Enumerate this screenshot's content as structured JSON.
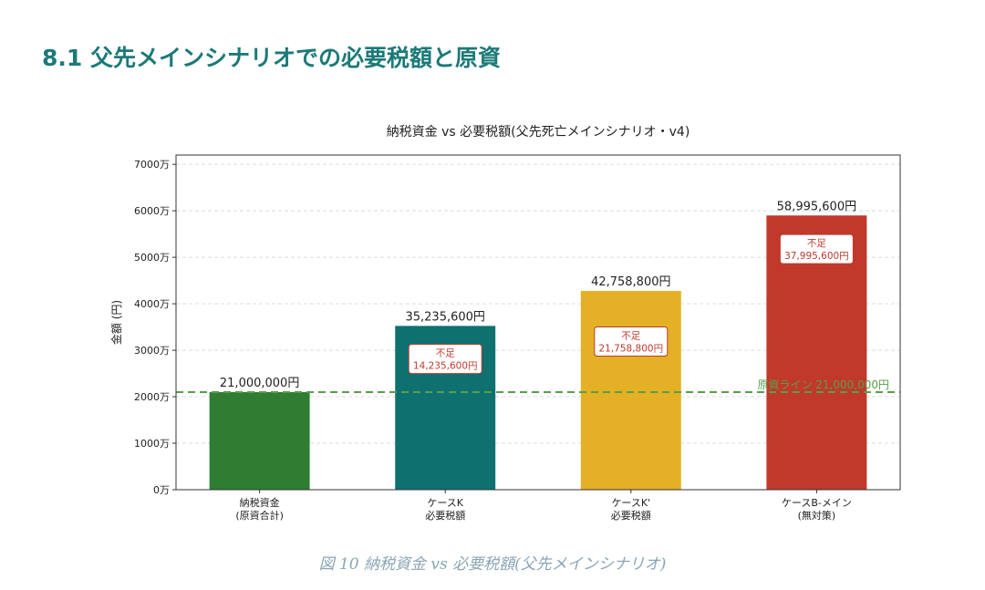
{
  "heading": "8.1  父先メインシナリオでの必要税額と原資",
  "caption": "図 10  納税資金 vs 必要税額(父先メインシナリオ)",
  "chart_data": {
    "type": "bar",
    "title": "納税資金 vs 必要税額(父先死亡メインシナリオ・v4)",
    "xlabel": "",
    "ylabel": "金額 (円)",
    "ylim": [
      0,
      72000000
    ],
    "yticks": [
      0,
      10000000,
      20000000,
      30000000,
      40000000,
      50000000,
      60000000,
      70000000
    ],
    "ytick_labels": [
      "0万",
      "1000万",
      "2000万",
      "3000万",
      "4000万",
      "5000万",
      "6000万",
      "7000万"
    ],
    "grid": "y-dashed",
    "categories": [
      [
        "納税資金",
        "(原資合計)"
      ],
      [
        "ケースK",
        "必要税額"
      ],
      [
        "ケースK'",
        "必要税額"
      ],
      [
        "ケースB-メイン",
        "(無対策)"
      ]
    ],
    "values": [
      21000000,
      35235600,
      42758800,
      58995600
    ],
    "value_labels": [
      "21,000,000円",
      "35,235,600円",
      "42,758,800円",
      "58,995,600円"
    ],
    "colors": [
      "#2e7d32",
      "#0f7070",
      "#e3b026",
      "#c0392b"
    ],
    "shortfall_labels": [
      null,
      [
        "不足",
        "14,235,600円"
      ],
      [
        "不足",
        "21,758,800円"
      ],
      [
        "不足",
        "37,995,600円"
      ]
    ],
    "shortfall_color": "#c0392b",
    "reference_line": {
      "value": 21000000,
      "label": "原資ライン 21,000,000円",
      "color": "#5a9e4a"
    }
  }
}
